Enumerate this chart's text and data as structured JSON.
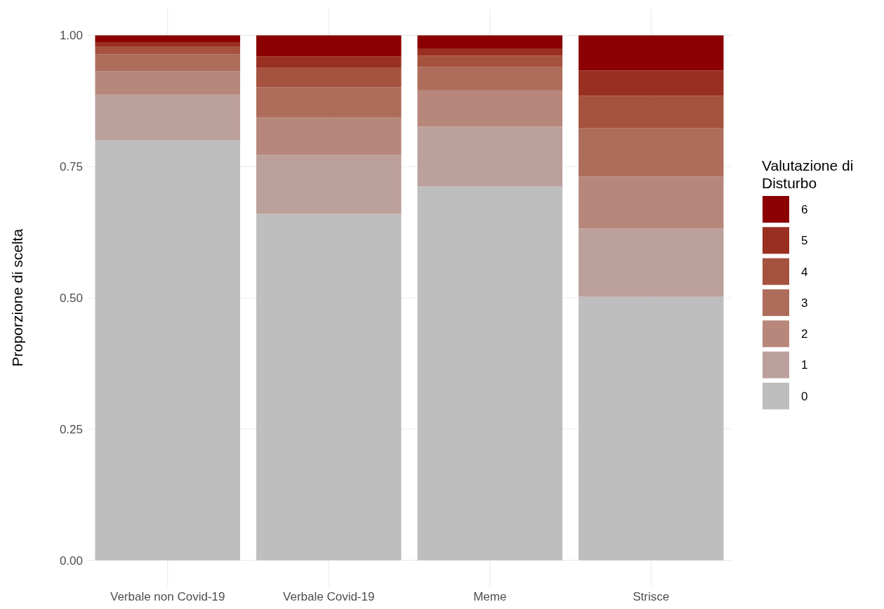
{
  "chart_data": {
    "type": "bar",
    "stacked": true,
    "ylabel": "Proporzione di scelta",
    "legend_title": "Valutazione di\nDisturbo",
    "categories": [
      "Verbale non Covid-19",
      "Verbale Covid-19",
      "Meme",
      "Strisce"
    ],
    "series": [
      {
        "name": "0",
        "color": "#bebebe",
        "values": [
          0.8,
          0.66,
          0.712,
          0.502
        ]
      },
      {
        "name": "1",
        "color": "#bca09c",
        "values": [
          0.087,
          0.112,
          0.114,
          0.13
        ]
      },
      {
        "name": "2",
        "color": "#b7877c",
        "values": [
          0.045,
          0.071,
          0.069,
          0.099
        ]
      },
      {
        "name": "3",
        "color": "#ae6d5b",
        "values": [
          0.032,
          0.058,
          0.045,
          0.092
        ]
      },
      {
        "name": "4",
        "color": "#a5523e",
        "values": [
          0.014,
          0.037,
          0.021,
          0.062
        ]
      },
      {
        "name": "5",
        "color": "#992f21",
        "values": [
          0.009,
          0.022,
          0.014,
          0.048
        ]
      },
      {
        "name": "6",
        "color": "#8b0000",
        "values": [
          0.013,
          0.04,
          0.025,
          0.067
        ]
      }
    ],
    "ylim": [
      -0.05,
      1.05
    ],
    "yticks": [
      {
        "value": 0,
        "label": "0.00"
      },
      {
        "value": 0.25,
        "label": "0.25"
      },
      {
        "value": 0.5,
        "label": "0.50"
      },
      {
        "value": 0.75,
        "label": "0.75"
      },
      {
        "value": 1,
        "label": "1.00"
      }
    ],
    "grid": true,
    "legend": "right"
  }
}
